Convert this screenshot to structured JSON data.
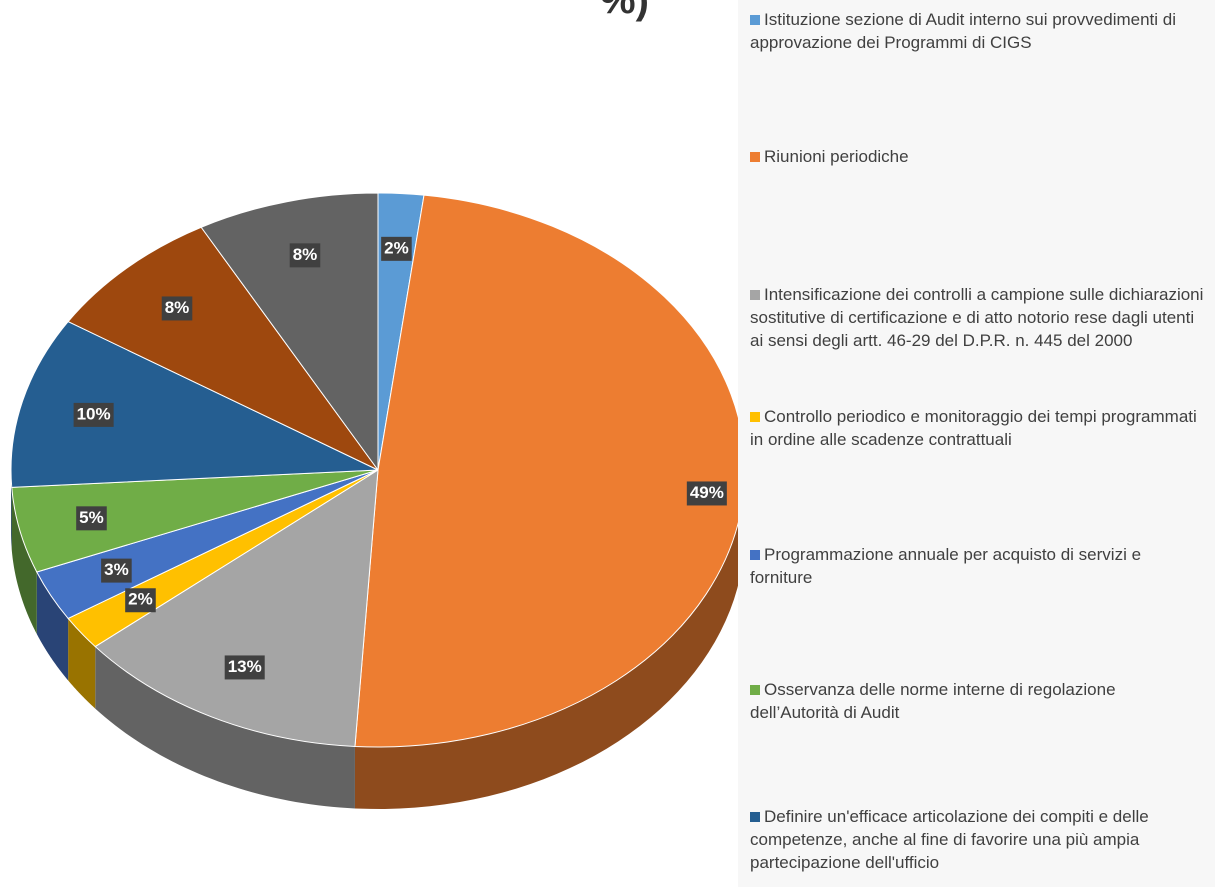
{
  "chart_data": {
    "type": "pie",
    "title": "%)",
    "categories": [
      "Istituzione sezione di Audit interno sui provvedimenti di approvazione dei Programmi di CIGS",
      "Riunioni periodiche",
      "Intensificazione dei controlli a campione sulle dichiarazioni sostitutive di certificazione e di atto notorio rese dagli utenti ai sensi degli artt. 46-29 del D.P.R. n. 445 del 2000",
      "Controllo periodico e monitoraggio dei tempi programmati in ordine alle scadenze contrattuali",
      "Programmazione annuale per acquisto di servizi e forniture",
      "Osservanza delle norme interne di regolazione dell’Autorità di Audit",
      "Definire un'efficace articolazione dei compiti e delle competenze, anche al fine di favorire una più ampia partecipazione dell'ufficio",
      null,
      null
    ],
    "values": [
      2,
      49,
      13,
      2,
      3,
      5,
      10,
      8,
      8
    ],
    "value_labels": [
      "2%",
      "49%",
      "13%",
      "2%",
      "3%",
      "5%",
      "10%",
      "8%",
      "8%"
    ],
    "colors": [
      "#5b9bd5",
      "#ed7d31",
      "#a5a5a5",
      "#ffc000",
      "#4472c4",
      "#70ad47",
      "#255e91",
      "#9e480e",
      "#636363"
    ]
  }
}
